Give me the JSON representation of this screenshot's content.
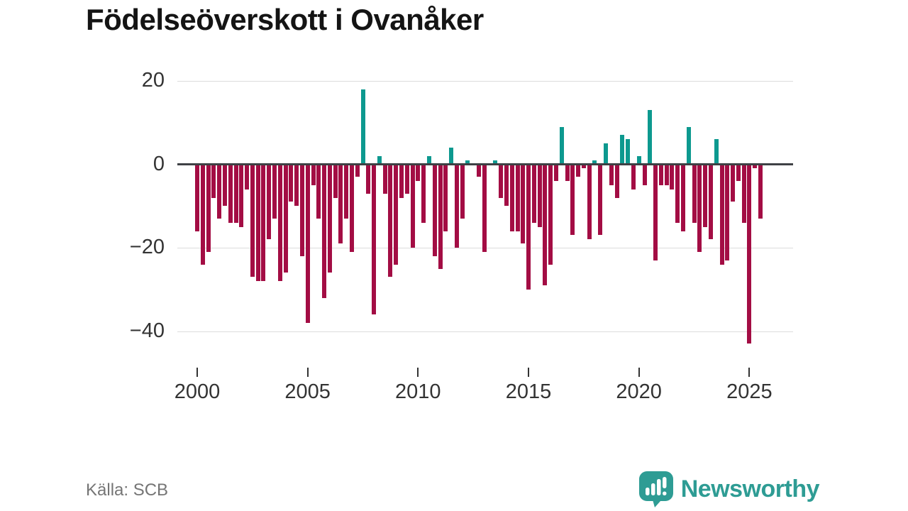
{
  "page": {
    "title": "Födelseöverskott i Ovanåker",
    "source": "Källa: SCB",
    "brand": "Newsworthy"
  },
  "colors": {
    "negative_bar": "#a30d44",
    "positive_bar": "#0d998f",
    "zero_axis": "#3f4145",
    "gridline": "#dcdcdc",
    "tick_label": "#333333",
    "title": "#141414",
    "source_text": "#757575",
    "brand_teal": "#2e9c94"
  },
  "chart_data": {
    "type": "bar",
    "title": "Födelseöverskott i Ovanåker",
    "frequency": "quarterly",
    "x_start": "2000-Q1",
    "x_end": "2025-Q3",
    "x_ticks": [
      2000,
      2005,
      2010,
      2015,
      2020,
      2025
    ],
    "y_ticks": [
      20,
      0,
      -20,
      -40
    ],
    "y_tick_labels": [
      "20",
      "0",
      "−20",
      "−40"
    ],
    "ylim": [
      -45,
      20
    ],
    "grid": "horizontal",
    "legend": "none",
    "values": [
      -16,
      -24,
      -21,
      -8,
      -13,
      -10,
      -14,
      -14,
      -15,
      -6,
      -27,
      -28,
      -28,
      -18,
      -13,
      -28,
      -26,
      -9,
      -10,
      -22,
      -38,
      -5,
      -13,
      -32,
      -26,
      -8,
      -19,
      -13,
      -21,
      -3,
      18,
      -7,
      -36,
      2,
      -7,
      -27,
      -24,
      -8,
      -7,
      -20,
      -4,
      -14,
      2,
      -22,
      -25,
      -16,
      4,
      -20,
      -13,
      1,
      0,
      -3,
      -21,
      0,
      1,
      -8,
      -10,
      -16,
      -16,
      -19,
      -30,
      -14,
      -15,
      -29,
      -24,
      -4,
      9,
      -4,
      -17,
      -3,
      -1,
      -18,
      1,
      -17,
      5,
      -5,
      -8,
      7,
      6,
      -6,
      2,
      -5,
      13,
      -23,
      -5,
      -5,
      -6,
      -14,
      -16,
      9,
      -14,
      -21,
      -15,
      -18,
      6,
      -24,
      -23,
      -9,
      -4,
      -14,
      -43,
      -1,
      -13
    ]
  }
}
